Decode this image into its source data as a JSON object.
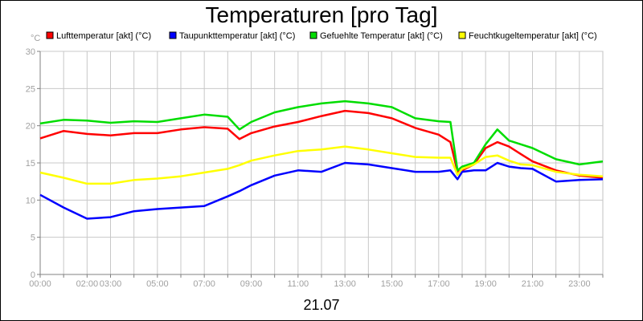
{
  "chart_data": {
    "type": "line",
    "title": "Temperaturen [pro Tag]",
    "ylabel": "°C",
    "xlabel": "21.07",
    "ylim": [
      0,
      30
    ],
    "xlim": [
      0,
      24
    ],
    "yticks": [
      0,
      5,
      10,
      15,
      20,
      25,
      30
    ],
    "xticks": [
      {
        "x": 0,
        "label": "00:00"
      },
      {
        "x": 2,
        "label": "02:00"
      },
      {
        "x": 3,
        "label": "03:00"
      },
      {
        "x": 5,
        "label": "05:00"
      },
      {
        "x": 7,
        "label": "07:00"
      },
      {
        "x": 9,
        "label": "09:00"
      },
      {
        "x": 11,
        "label": "11:00"
      },
      {
        "x": 13,
        "label": "13:00"
      },
      {
        "x": 15,
        "label": "15:00"
      },
      {
        "x": 17,
        "label": "17:00"
      },
      {
        "x": 19,
        "label": "19:00"
      },
      {
        "x": 21,
        "label": "21:00"
      },
      {
        "x": 23,
        "label": "23:00"
      }
    ],
    "grid": true,
    "legend_position": "top",
    "x": [
      0,
      1,
      2,
      3,
      4,
      5,
      6,
      7,
      8,
      8.5,
      9,
      10,
      11,
      12,
      13,
      14,
      15,
      16,
      17,
      17.5,
      17.8,
      18,
      18.5,
      19,
      19.5,
      20,
      20.5,
      21,
      22,
      23,
      24
    ],
    "series": [
      {
        "name": "Lufttemperatur [akt] (°C)",
        "color": "#ff0000",
        "values": [
          18.3,
          19.3,
          18.9,
          18.7,
          19.0,
          19.0,
          19.5,
          19.8,
          19.6,
          18.2,
          19.0,
          19.9,
          20.5,
          21.3,
          22.0,
          21.7,
          21.0,
          19.7,
          18.8,
          17.8,
          13.8,
          14.0,
          14.8,
          17.0,
          17.8,
          17.2,
          16.2,
          15.2,
          14.0,
          13.3,
          13.0
        ]
      },
      {
        "name": "Taupunkttemperatur [akt] (°C)",
        "color": "#0000ff",
        "values": [
          10.7,
          9.0,
          7.5,
          7.7,
          8.5,
          8.8,
          9.0,
          9.2,
          10.5,
          11.2,
          12.0,
          13.3,
          14.0,
          13.8,
          15.0,
          14.8,
          14.3,
          13.8,
          13.8,
          14.0,
          12.8,
          13.8,
          14.0,
          14.0,
          15.0,
          14.5,
          14.3,
          14.2,
          12.5,
          12.7,
          12.8
        ]
      },
      {
        "name": "Gefuehlte Temperatur [akt] (°C)",
        "color": "#00dd00",
        "values": [
          20.3,
          20.8,
          20.7,
          20.4,
          20.6,
          20.5,
          21.0,
          21.5,
          21.2,
          19.5,
          20.5,
          21.8,
          22.5,
          23.0,
          23.3,
          23.0,
          22.5,
          21.0,
          20.6,
          20.5,
          14.0,
          14.5,
          15.0,
          17.5,
          19.5,
          18.0,
          17.5,
          17.0,
          15.5,
          14.8,
          15.2
        ]
      },
      {
        "name": "Feuchtkugeltemperatur [akt] (°C)",
        "color": "#ffff00",
        "values": [
          13.7,
          13.0,
          12.2,
          12.2,
          12.7,
          12.9,
          13.2,
          13.7,
          14.2,
          14.7,
          15.3,
          16.0,
          16.6,
          16.8,
          17.2,
          16.8,
          16.3,
          15.8,
          15.7,
          15.7,
          13.4,
          14.2,
          14.8,
          15.8,
          16.0,
          15.3,
          14.8,
          14.7,
          13.8,
          13.4,
          13.2
        ]
      }
    ]
  }
}
